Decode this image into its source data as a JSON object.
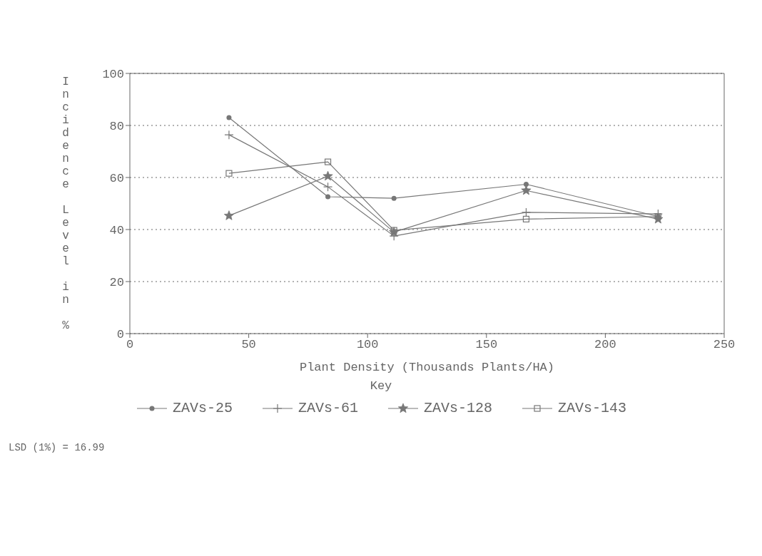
{
  "chart_data": {
    "type": "line",
    "xlabel": "Plant Density (Thousands Plants/HA)",
    "ylabel": "Incidence Level in %",
    "legend_title": "Key",
    "x": [
      41.7,
      83.3,
      111.1,
      166.7,
      222.2
    ],
    "series": [
      {
        "name": "ZAVs-25",
        "color": "#777777",
        "marker": "circle",
        "values": [
          83,
          52.6,
          52,
          57.4,
          45
        ]
      },
      {
        "name": "ZAVs-61",
        "color": "#777777",
        "marker": "cross",
        "values": [
          76.4,
          56.4,
          37.5,
          46.6,
          46
        ]
      },
      {
        "name": "ZAVs-128",
        "color": "#777777",
        "marker": "star",
        "values": [
          45.3,
          60.5,
          39,
          55,
          44
        ]
      },
      {
        "name": "ZAVs-143",
        "color": "#777777",
        "marker": "square",
        "values": [
          61.6,
          66,
          39.7,
          44,
          45
        ]
      }
    ],
    "xlim": [
      0,
      250
    ],
    "xticks": [
      0,
      50,
      100,
      150,
      200,
      250
    ],
    "ylim": [
      0,
      100
    ],
    "yticks": [
      0,
      20,
      40,
      60,
      80,
      100
    ],
    "grid": "y",
    "legend": "bottom",
    "line_style": "solid",
    "annotations": [
      "LSD (1%) = 16.99"
    ]
  }
}
